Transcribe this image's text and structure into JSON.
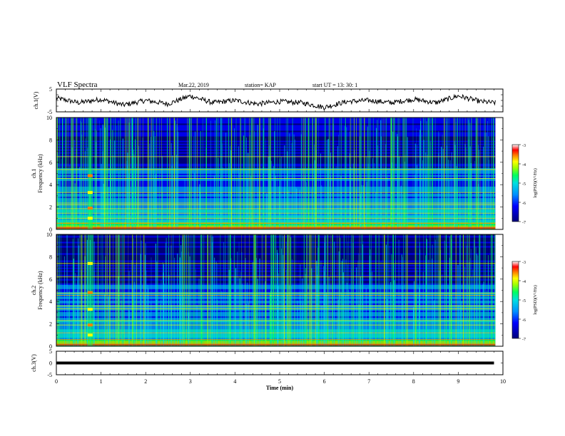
{
  "header": {
    "title": "VLF Spectra",
    "date": "Mar.22, 2019",
    "station": "station= KAP",
    "start": "start  UT  =   13: 30: 1"
  },
  "colors": {
    "colormap": [
      "#00007a",
      "#0000ff",
      "#0090ff",
      "#00e0e0",
      "#00ff60",
      "#a0ff00",
      "#ffff00",
      "#ff8000",
      "#ff0000",
      "#ffffff"
    ]
  },
  "chart_data": [
    {
      "type": "line",
      "ylabel": "ch.1(V)",
      "xlim": [
        0,
        10
      ],
      "ylim": [
        -5,
        5
      ],
      "yticks": [
        "5",
        "-5"
      ],
      "series": [
        {
          "x": [
            0,
            0.5,
            1,
            1.5,
            2,
            2.5,
            3,
            3.5,
            4,
            4.5,
            5,
            5.5,
            6,
            6.5,
            7,
            7.5,
            8,
            8.5,
            9,
            9.5,
            9.8
          ],
          "y": [
            1,
            -1,
            0.5,
            -2,
            0,
            -1.5,
            2,
            -1,
            0,
            -1.5,
            -0.5,
            -1,
            -3,
            -0.5,
            0,
            -1,
            0.5,
            -1,
            2,
            -0.5,
            -1
          ]
        }
      ]
    },
    {
      "type": "heatmap",
      "ylabel": "ch.1",
      "ylabel2": "Frequency (kHz)",
      "xlim": [
        0,
        10
      ],
      "ylim": [
        0,
        10
      ],
      "yticks": [
        "0",
        "2",
        "4",
        "6",
        "8",
        "10"
      ],
      "colorbar_label": "log(PSD)(V²/Hz)",
      "colorbar_range": [
        -7,
        -3
      ],
      "colorbar_ticks": [
        "-3",
        "-4",
        "-5",
        "-6",
        "-7"
      ]
    },
    {
      "type": "heatmap",
      "ylabel": "ch.2",
      "ylabel2": "Frequency (kHz)",
      "xlim": [
        0,
        10
      ],
      "ylim": [
        0,
        10
      ],
      "yticks": [
        "0",
        "2",
        "4",
        "6",
        "8",
        "10"
      ],
      "colorbar_label": "log(PSD)(V²/Hz)",
      "colorbar_range": [
        -7,
        -3
      ],
      "colorbar_ticks": [
        "-3",
        "-4",
        "-5",
        "-6",
        "-7"
      ]
    },
    {
      "type": "line",
      "ylabel": "ch.3(V)",
      "xlim": [
        0,
        10
      ],
      "ylim": [
        -5,
        5
      ],
      "yticks": [
        "5",
        "0",
        "-5"
      ],
      "series": [
        {
          "x": [
            0,
            9.8
          ],
          "y": [
            0,
            0
          ]
        }
      ]
    }
  ],
  "xaxis": {
    "label": "Time (min)",
    "ticks": [
      "0",
      "1",
      "2",
      "3",
      "4",
      "5",
      "6",
      "7",
      "8",
      "9",
      "10"
    ]
  }
}
